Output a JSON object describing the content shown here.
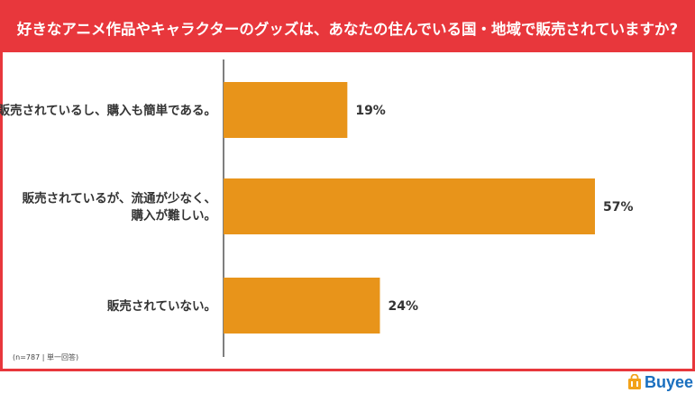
{
  "title": "好きなアニメ作品やキャラクターのグッズは、あなたの住んでいる国・地域で販売されていますか?",
  "note": "(n=787 | 単一回答)",
  "brand": {
    "name": "Buyee"
  },
  "colors": {
    "accent": "#e8373c",
    "bar": "#e8941a",
    "axis": "#555555",
    "brand": "#1a6fbf"
  },
  "chart_data": {
    "type": "bar",
    "orientation": "horizontal",
    "categories": [
      [
        "販売されているし、購入も簡単である。"
      ],
      [
        "販売されているが、流通が少なく、",
        "購入が難しい。"
      ],
      [
        "販売されていない。"
      ]
    ],
    "values": [
      19,
      57,
      24
    ],
    "value_labels": [
      "19%",
      "57%",
      "24%"
    ],
    "unit": "%",
    "xlim": [
      0,
      60
    ],
    "grid": false
  }
}
